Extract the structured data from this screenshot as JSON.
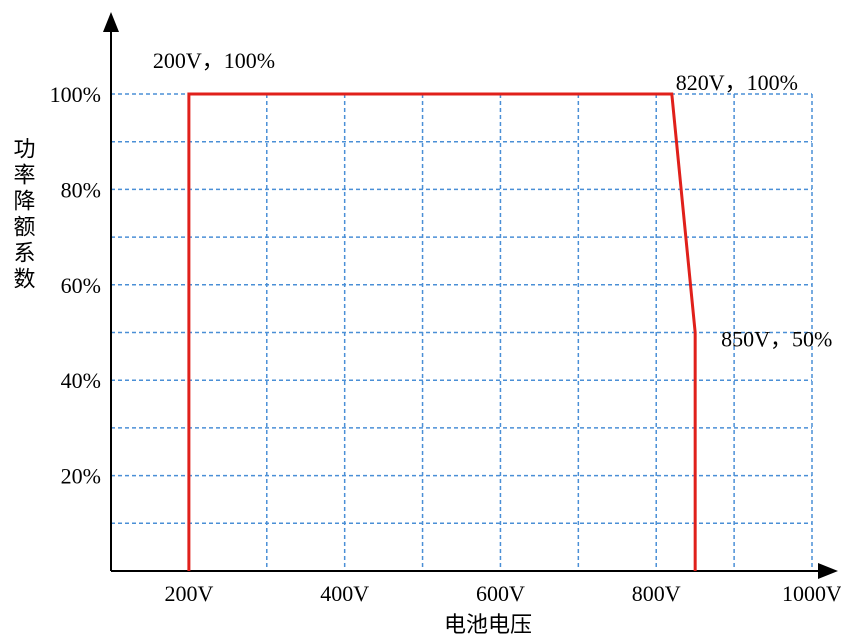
{
  "chart_data": {
    "type": "line",
    "title": "",
    "xlabel": "电池电压",
    "ylabel": "功率降额系数",
    "xlim": [
      100,
      1000
    ],
    "ylim": [
      0,
      100
    ],
    "x_ticks": [
      {
        "value": 200,
        "label": "200V"
      },
      {
        "value": 400,
        "label": "400V"
      },
      {
        "value": 600,
        "label": "600V"
      },
      {
        "value": 800,
        "label": "800V"
      },
      {
        "value": 1000,
        "label": "1000V"
      }
    ],
    "y_ticks": [
      {
        "value": 20,
        "label": "20%"
      },
      {
        "value": 40,
        "label": "40%"
      },
      {
        "value": 60,
        "label": "60%"
      },
      {
        "value": 80,
        "label": "80%"
      },
      {
        "value": 100,
        "label": "100%"
      }
    ],
    "grid": true,
    "grid_x_values": [
      200,
      300,
      400,
      500,
      600,
      700,
      800,
      900,
      1000
    ],
    "grid_y_values": [
      10,
      20,
      30,
      40,
      50,
      60,
      70,
      80,
      90,
      100
    ],
    "series": [
      {
        "color": "#e0201b",
        "points": [
          {
            "x": 200,
            "y": 0
          },
          {
            "x": 200,
            "y": 100
          },
          {
            "x": 820,
            "y": 100
          },
          {
            "x": 850,
            "y": 50
          },
          {
            "x": 850,
            "y": 0
          }
        ]
      }
    ],
    "annotations": [
      {
        "text": "200V，100%",
        "x": 200,
        "y": 100,
        "anchor": "above"
      },
      {
        "text": "820V，100%",
        "x": 820,
        "y": 100,
        "anchor": "above-right"
      },
      {
        "text": "850V，50%",
        "x": 850,
        "y": 50,
        "anchor": "right"
      }
    ],
    "colors": {
      "line": "#e0201b",
      "grid": "#4a8fd6",
      "axis": "#000000"
    }
  }
}
